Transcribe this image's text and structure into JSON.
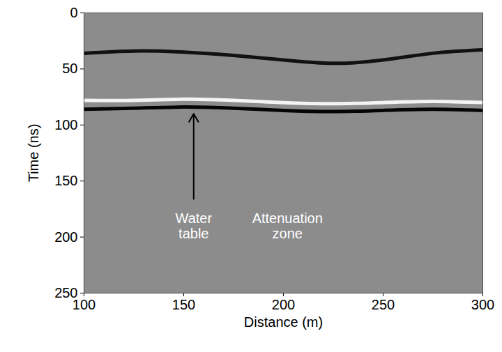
{
  "chart_data": {
    "type": "radargram",
    "x_label": "Distance (m)",
    "y_label": "Time (ns)",
    "xlim": [
      100,
      300
    ],
    "xticks": [
      100,
      150,
      200,
      250,
      300
    ],
    "ylim": [
      0,
      250
    ],
    "yticks": [
      0,
      50,
      100,
      150,
      200,
      250
    ],
    "x": [
      100,
      125,
      150,
      175,
      200,
      225,
      250,
      275,
      300
    ],
    "series": [
      {
        "color": "#111111",
        "values": [
          36,
          34,
          35,
          38,
          42,
          45,
          42,
          36,
          33
        ]
      },
      {
        "color": "#f4f4f4",
        "values": [
          78,
          78,
          77,
          78,
          80,
          81,
          80,
          79,
          80
        ]
      },
      {
        "color": "#050505",
        "values": [
          86,
          85,
          84,
          85,
          87,
          88,
          87,
          86,
          87
        ]
      }
    ],
    "annotations": [
      {
        "text": "Water table",
        "x": 155,
        "y": 178,
        "arrow_to": [
          155,
          90
        ]
      },
      {
        "text": "Attenuation zone",
        "x": 202,
        "y": 178
      }
    ]
  }
}
